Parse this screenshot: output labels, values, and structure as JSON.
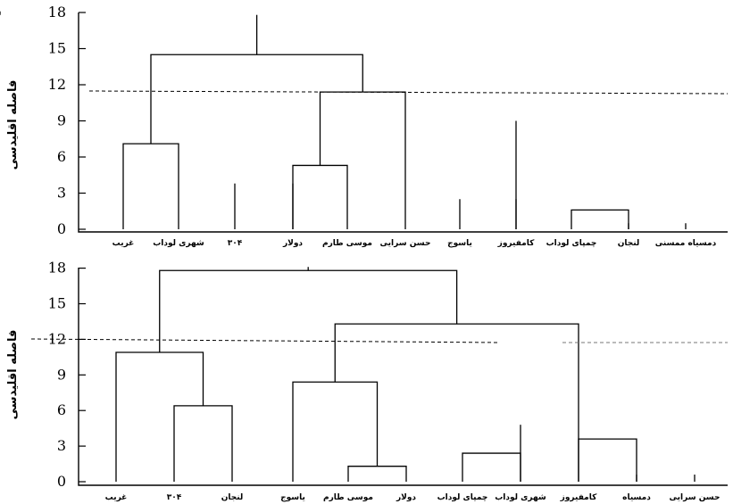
{
  "chart_data": [
    {
      "type": "dendrogram",
      "ylabel": "فاصله اقلیدسی",
      "yticks": [
        0,
        3,
        6,
        9,
        12,
        15,
        18
      ],
      "ylim": [
        0,
        18
      ],
      "cut_height": 11.8,
      "leaf_labels": [
        "غریب",
        "شهری لوداب",
        "۳۰۴",
        "دولار",
        "موسی طارم",
        "حسن سرایی",
        "یاسوج",
        "کامفیروز",
        "چمپای لوداب",
        "لنجان",
        "دمسیاه ممسنی"
      ],
      "merge_heights": [
        7.1,
        5.3,
        11.4,
        14.5,
        9.0,
        1.6,
        17.8
      ]
    },
    {
      "type": "dendrogram",
      "ylabel": "فاصله اقلیدسی",
      "yticks": [
        0,
        3,
        6,
        9,
        12,
        15,
        18
      ],
      "ylim": [
        0,
        18
      ],
      "cut_height": 11.8,
      "leaf_labels": [
        "غریب",
        "۳۰۴",
        "لنجان",
        "یاسوج",
        "موسی طارم",
        "دولار",
        "چمپای لوداب",
        "شهری لوداب",
        "کامفیروز",
        "دمسیاه",
        "حسن سرایی"
      ],
      "merge_heights": [
        6.4,
        10.9,
        1.3,
        8.4,
        2.4,
        13.3,
        3.6,
        17.8
      ]
    }
  ]
}
